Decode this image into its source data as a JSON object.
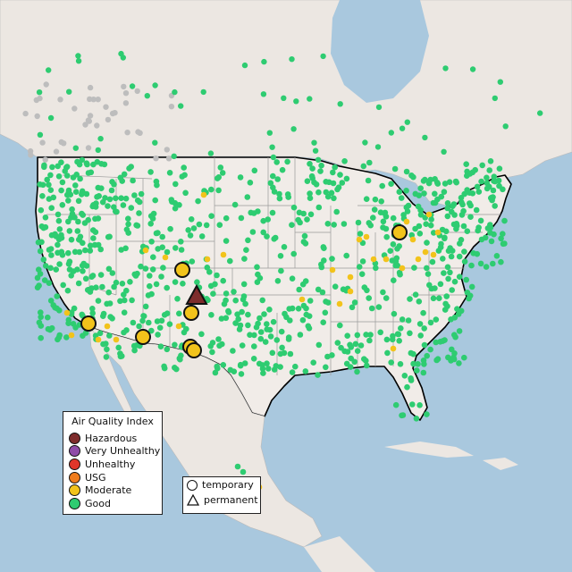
{
  "legend": {
    "title": "Air Quality Index",
    "categories": [
      {
        "label": "Hazardous",
        "color": "#7e2c2c"
      },
      {
        "label": "Very Unhealthy",
        "color": "#8f4ba8"
      },
      {
        "label": "Unhealthy",
        "color": "#e0362a"
      },
      {
        "label": "USG",
        "color": "#f07c1c"
      },
      {
        "label": "Moderate",
        "color": "#f2c31b"
      },
      {
        "label": "Good",
        "color": "#2ecc71"
      }
    ]
  },
  "type_legend": {
    "items": [
      {
        "label": "temporary",
        "icon": "circle-icon"
      },
      {
        "label": "permanent",
        "icon": "triangle-icon"
      }
    ]
  },
  "colors": {
    "water": "#a9c8de",
    "land": "#f1ece8",
    "land_other": "#ece7e2",
    "border": "#000000",
    "state_lines": "#9a9a9a",
    "good": "#2ecc71",
    "moderate": "#f2c31b",
    "hazardous": "#7e2c2c",
    "inactive": "#bdbdbd"
  }
}
